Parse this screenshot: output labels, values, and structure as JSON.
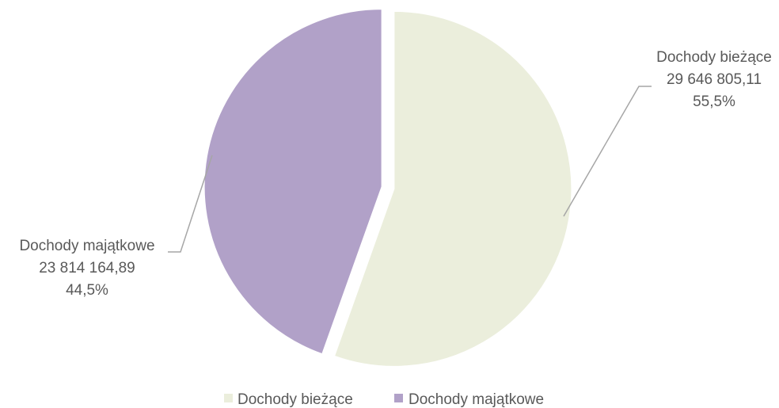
{
  "chart_data": {
    "type": "pie",
    "title": "",
    "colors": [
      "#ebeedc",
      "#b1a1c8"
    ],
    "legend_position": "bottom",
    "slices": [
      {
        "name": "Dochody bieżące",
        "value": 29646805.11,
        "value_label": "29 646 805,11",
        "percent_label": "55,5%"
      },
      {
        "name": "Dochody majątkowe",
        "value": 23814164.89,
        "value_label": "23 814 164,89",
        "percent_label": "44,5%"
      }
    ]
  }
}
